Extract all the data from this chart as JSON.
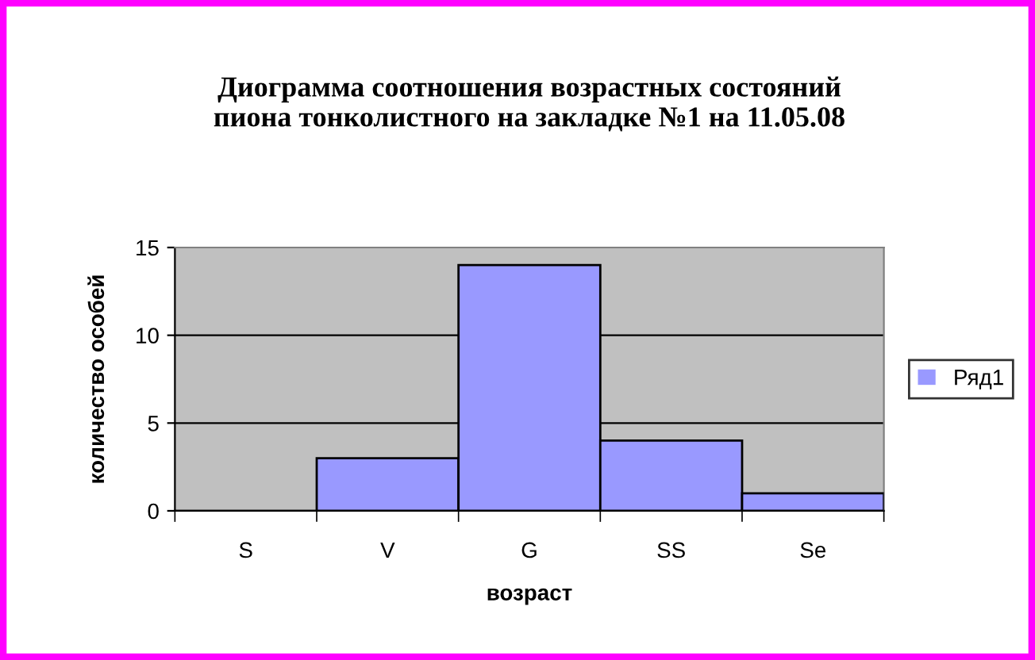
{
  "chart_data": {
    "type": "bar",
    "title": "Диограмма соотношения возрастных состояний\nпиона тонколистного на закладке №1 на 11.05.08",
    "xlabel": "возраст",
    "ylabel": "количество особей",
    "categories": [
      "S",
      "V",
      "G",
      "SS",
      "Se"
    ],
    "series": [
      {
        "name": "Ряд1",
        "color": "#9999ff",
        "values": [
          0,
          3,
          14,
          4,
          1
        ]
      }
    ],
    "ylim": [
      0,
      15
    ],
    "yticks": [
      0,
      5,
      10,
      15
    ],
    "grid": "y",
    "legend": "right"
  }
}
